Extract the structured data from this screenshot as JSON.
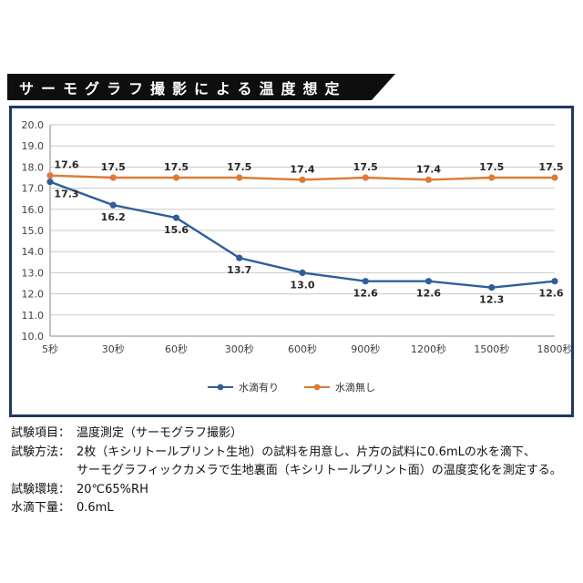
{
  "title": "サーモグラフ撮影による温度想定",
  "chart_data": {
    "type": "line",
    "categories": [
      "5秒",
      "30秒",
      "60秒",
      "300秒",
      "600秒",
      "900秒",
      "1200秒",
      "1500秒",
      "1800秒"
    ],
    "series": [
      {
        "name": "水滴有り",
        "color": "#2e5f9c",
        "values": [
          17.3,
          16.2,
          15.6,
          13.7,
          13.0,
          12.6,
          12.6,
          12.3,
          12.6
        ],
        "label_position": "below"
      },
      {
        "name": "水滴無し",
        "color": "#dd7a36",
        "values": [
          17.6,
          17.5,
          17.5,
          17.5,
          17.4,
          17.5,
          17.4,
          17.5,
          17.5
        ],
        "label_position": "above"
      }
    ],
    "ylim": [
      10.0,
      20.0
    ],
    "ytick_step": 1.0,
    "grid": true,
    "legend_position": "bottom"
  },
  "notes": [
    {
      "label": "試験項目：",
      "text": "温度測定（サーモグラフ撮影）"
    },
    {
      "label": "試験方法：",
      "text": "2枚（キシリトールプリント生地）の試料を用意し、片方の試料に0.6mLの水を滴下、\nサーモグラフィックカメラで生地裏面（キシリトールプリント面）の温度変化を測定する。"
    },
    {
      "label": "試験環境：",
      "text": "20℃65%RH"
    },
    {
      "label": "水滴下量：",
      "text": "0.6mL"
    }
  ]
}
